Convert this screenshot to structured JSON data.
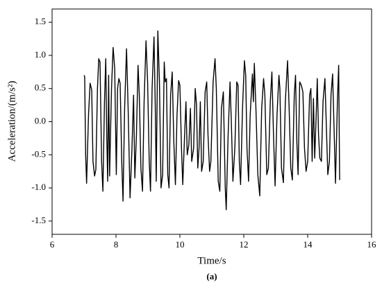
{
  "chart_data": {
    "type": "line",
    "x_label": "Time/s",
    "y_label": "Acceleration/(m/s²)",
    "caption": "(a)",
    "xlim": [
      6,
      16
    ],
    "xticks": [
      6,
      8,
      10,
      12,
      14,
      16
    ],
    "ylim": [
      -1.7,
      1.7
    ],
    "yticks": [
      -1.5,
      {
        "value": -1.0,
        "label": "-1.0"
      },
      -0.5,
      {
        "value": 0,
        "label": "0.0"
      },
      0.5,
      {
        "value": 1.0,
        "label": "1.0"
      },
      1.5
    ],
    "color": "#000000",
    "x": [
      7.0,
      7.02,
      7.05,
      7.08,
      7.14,
      7.19,
      7.24,
      7.28,
      7.33,
      7.37,
      7.42,
      7.46,
      7.5,
      7.55,
      7.59,
      7.64,
      7.68,
      7.71,
      7.74,
      7.77,
      7.8,
      7.86,
      7.91,
      7.96,
      8.01,
      8.05,
      8.09,
      8.13,
      8.18,
      8.22,
      8.27,
      8.33,
      8.38,
      8.44,
      8.5,
      8.55,
      8.59,
      8.64,
      8.69,
      8.73,
      8.78,
      8.83,
      8.88,
      8.94,
      8.99,
      9.04,
      9.08,
      9.13,
      9.19,
      9.23,
      9.26,
      9.31,
      9.36,
      9.41,
      9.46,
      9.51,
      9.54,
      9.58,
      9.62,
      9.66,
      9.71,
      9.76,
      9.81,
      9.86,
      9.91,
      9.96,
      10.0,
      10.05,
      10.09,
      10.14,
      10.19,
      10.23,
      10.28,
      10.33,
      10.37,
      10.43,
      10.48,
      10.52,
      10.56,
      10.6,
      10.64,
      10.68,
      10.73,
      10.79,
      10.84,
      10.88,
      10.93,
      10.97,
      11.04,
      11.1,
      11.14,
      11.2,
      11.25,
      11.3,
      11.36,
      11.42,
      11.45,
      11.51,
      11.57,
      11.61,
      11.66,
      11.72,
      11.78,
      11.82,
      11.86,
      11.9,
      11.96,
      12.02,
      12.06,
      12.1,
      12.15,
      12.2,
      12.27,
      12.3,
      12.33,
      12.38,
      12.44,
      12.5,
      12.56,
      12.62,
      12.66,
      12.72,
      12.77,
      12.83,
      12.88,
      12.93,
      12.98,
      13.04,
      13.1,
      13.13,
      13.18,
      13.24,
      13.3,
      13.37,
      13.42,
      13.47,
      13.52,
      13.58,
      13.62,
      13.66,
      13.7,
      13.75,
      13.8,
      13.85,
      13.9,
      13.95,
      14.0,
      14.06,
      14.1,
      14.14,
      14.18,
      14.22,
      14.27,
      14.3,
      14.34,
      14.38,
      14.43,
      14.48,
      14.54,
      14.58,
      14.63,
      14.68,
      14.73,
      14.78,
      14.82,
      14.87,
      14.93,
      14.97,
      15.0
    ],
    "values": [
      0.7,
      0.68,
      -0.5,
      -0.93,
      0.1,
      0.58,
      0.48,
      -0.6,
      -0.82,
      -0.72,
      0.5,
      0.95,
      0.9,
      -0.6,
      -1.05,
      0.3,
      0.95,
      -0.2,
      -0.9,
      0.7,
      -0.82,
      0.5,
      1.12,
      0.8,
      -0.8,
      0.5,
      0.65,
      0.58,
      -0.6,
      -1.2,
      0.2,
      1.1,
      0.2,
      -1.15,
      -0.4,
      0.4,
      -0.85,
      -0.2,
      0.85,
      0.4,
      -0.7,
      -1.05,
      0.3,
      1.22,
      0.6,
      -0.6,
      -1.05,
      0.5,
      1.28,
      0.2,
      -0.9,
      1.37,
      0.6,
      -1.0,
      -0.8,
      0.9,
      0.6,
      0.65,
      -0.8,
      -1.0,
      0.4,
      0.75,
      -0.3,
      -0.95,
      0.1,
      0.62,
      0.55,
      -0.4,
      -0.95,
      -0.3,
      0.3,
      -0.5,
      -0.35,
      0.2,
      -0.6,
      -0.4,
      0.5,
      0.25,
      -0.7,
      -0.4,
      0.3,
      -0.75,
      -0.6,
      0.45,
      0.6,
      -0.2,
      -0.75,
      -0.6,
      0.6,
      0.95,
      0.5,
      -0.9,
      -1.05,
      0.2,
      0.45,
      -1.0,
      -1.33,
      -0.2,
      0.6,
      0.0,
      -0.9,
      -0.4,
      0.6,
      0.55,
      -0.6,
      -0.95,
      0.2,
      0.92,
      0.7,
      -0.4,
      -0.9,
      0.1,
      0.72,
      0.3,
      0.88,
      0.2,
      -0.8,
      -1.12,
      0.2,
      0.65,
      0.4,
      -0.8,
      -0.7,
      0.3,
      0.75,
      -0.2,
      -0.97,
      0.1,
      0.7,
      0.5,
      -0.7,
      -0.92,
      0.3,
      0.92,
      0.2,
      -0.7,
      -0.88,
      0.4,
      0.7,
      -0.3,
      -0.8,
      0.6,
      0.55,
      0.45,
      -0.4,
      -0.75,
      -0.6,
      0.4,
      0.5,
      -0.6,
      0.35,
      -0.55,
      0.15,
      0.65,
      -0.2,
      -0.55,
      -0.6,
      0.3,
      0.65,
      0.0,
      -0.8,
      -0.6,
      0.4,
      0.72,
      0.0,
      -0.93,
      0.3,
      0.85,
      -0.88
    ]
  }
}
